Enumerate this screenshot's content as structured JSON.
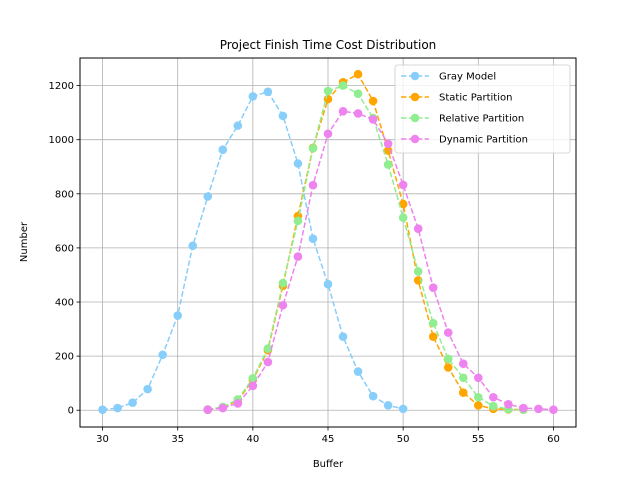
{
  "chart_data": {
    "type": "line",
    "title": "Project Finish Time Cost Distribution",
    "xlabel": "Buffer",
    "ylabel": "Number",
    "xlim": [
      28.5,
      61.5
    ],
    "ylim": [
      -62,
      1302
    ],
    "xticks": [
      30,
      35,
      40,
      45,
      50,
      55,
      60
    ],
    "yticks": [
      0,
      200,
      400,
      600,
      800,
      1000,
      1200
    ],
    "grid": true,
    "legend_position": "top-right",
    "series": [
      {
        "name": "Gray Model",
        "color": "#87CEFA",
        "x": [
          30,
          31,
          32,
          33,
          34,
          35,
          36,
          37,
          38,
          39,
          40,
          41,
          42,
          43,
          44,
          45,
          46,
          47,
          48,
          49,
          50
        ],
        "y": [
          2,
          8,
          28,
          78,
          205,
          350,
          608,
          790,
          963,
          1052,
          1160,
          1177,
          1088,
          912,
          634,
          466,
          272,
          143,
          52,
          18,
          5
        ]
      },
      {
        "name": "Static Partition",
        "color": "#FFA500",
        "x": [
          37,
          38,
          39,
          40,
          41,
          42,
          43,
          44,
          45,
          46,
          47,
          48,
          49,
          50,
          51,
          52,
          53,
          54,
          55,
          56,
          57,
          58
        ],
        "y": [
          2,
          10,
          35,
          112,
          222,
          460,
          718,
          970,
          1150,
          1212,
          1242,
          1143,
          960,
          762,
          480,
          272,
          158,
          65,
          18,
          5,
          3,
          2
        ]
      },
      {
        "name": "Relative Partition",
        "color": "#90EE90",
        "x": [
          37,
          38,
          39,
          40,
          41,
          42,
          43,
          44,
          45,
          46,
          47,
          48,
          49,
          50,
          51,
          52,
          53,
          54,
          55,
          56,
          57,
          58
        ],
        "y": [
          3,
          12,
          40,
          118,
          228,
          470,
          700,
          968,
          1180,
          1200,
          1170,
          1080,
          908,
          712,
          513,
          322,
          190,
          120,
          48,
          15,
          4,
          2
        ]
      },
      {
        "name": "Dynamic Partition",
        "color": "#EE82EE",
        "x": [
          37,
          38,
          39,
          40,
          41,
          42,
          43,
          44,
          45,
          46,
          47,
          48,
          49,
          50,
          51,
          52,
          53,
          54,
          55,
          56,
          57,
          58,
          59,
          60
        ],
        "y": [
          2,
          8,
          25,
          90,
          178,
          388,
          568,
          832,
          1022,
          1105,
          1097,
          1075,
          985,
          833,
          671,
          453,
          287,
          172,
          120,
          48,
          22,
          8,
          5,
          2
        ]
      }
    ]
  }
}
